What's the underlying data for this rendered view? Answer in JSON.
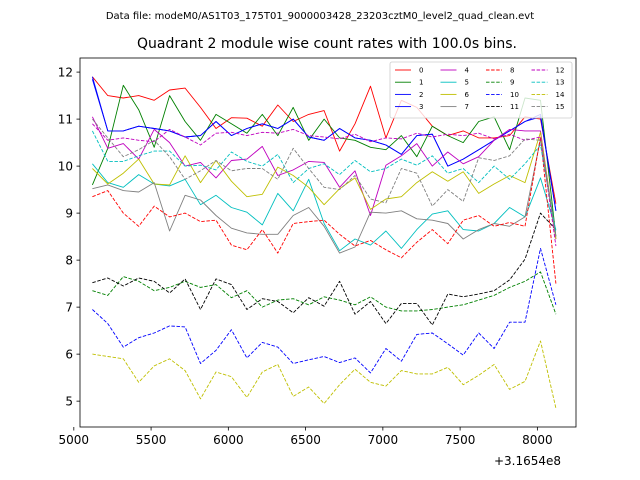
{
  "chart_data": {
    "type": "line",
    "suptitle": "Data file: modeM0/AS1T03_175T01_9000003428_23203cztM0_level2_quad_clean.evt",
    "title": "Quadrant 2 module wise count rates with 100.0s bins.",
    "xlabel": "",
    "ylabel": "",
    "x_offset_label": "+3.1654e8",
    "xlim": [
      5040,
      8250
    ],
    "ylim": [
      4.45,
      12.3
    ],
    "xticks": [
      5000,
      5500,
      6000,
      6500,
      7000,
      7500,
      8000
    ],
    "yticks": [
      5,
      6,
      7,
      8,
      9,
      10,
      11,
      12
    ],
    "legend_position": "top-right",
    "x": [
      5120,
      5220,
      5320,
      5420,
      5520,
      5620,
      5720,
      5820,
      5920,
      6020,
      6120,
      6220,
      6320,
      6420,
      6520,
      6620,
      6720,
      6820,
      6920,
      7020,
      7120,
      7220,
      7320,
      7420,
      7520,
      7620,
      7720,
      7820,
      7920,
      8020,
      8120
    ],
    "series": [
      {
        "name": "0",
        "color": "#ff0000",
        "dash": "solid",
        "values": [
          11.9,
          11.5,
          11.45,
          11.5,
          11.4,
          11.62,
          11.66,
          11.25,
          10.8,
          11.03,
          11.02,
          10.85,
          11.3,
          10.95,
          11.1,
          11.18,
          10.32,
          10.9,
          11.7,
          10.6,
          11.4,
          11.25,
          10.85,
          10.65,
          10.75,
          10.6,
          10.6,
          10.65,
          11.05,
          11.0,
          9.2
        ]
      },
      {
        "name": "1",
        "color": "#008000",
        "dash": "solid",
        "values": [
          9.6,
          10.38,
          11.72,
          11.2,
          10.4,
          11.5,
          10.95,
          10.55,
          11.1,
          10.9,
          10.7,
          11.1,
          10.65,
          11.25,
          10.55,
          11.0,
          10.6,
          10.55,
          10.4,
          10.35,
          10.65,
          10.2,
          10.85,
          10.65,
          10.5,
          10.95,
          11.05,
          10.35,
          11.45,
          11.4,
          8.5
        ]
      },
      {
        "name": "2",
        "color": "#0000ff",
        "dash": "solid",
        "values": [
          11.9,
          10.75,
          10.75,
          10.85,
          10.8,
          10.75,
          10.62,
          10.65,
          10.95,
          10.65,
          10.8,
          10.9,
          10.8,
          11.0,
          10.62,
          10.55,
          10.8,
          10.6,
          10.55,
          10.45,
          10.25,
          10.65,
          10.68,
          10.0,
          10.15,
          10.35,
          10.55,
          10.75,
          10.95,
          11.1,
          9.05
        ]
      },
      {
        "name": "3",
        "color": "#0000ff",
        "dash": "solid",
        "values": [
          11.85,
          10.75,
          10.75,
          10.85,
          10.8,
          10.75,
          10.62,
          10.65,
          10.95,
          10.65,
          10.8,
          10.9,
          10.8,
          11.0,
          10.62,
          10.55,
          10.8,
          10.6,
          10.55,
          10.45,
          10.25,
          10.65,
          10.68,
          10.0,
          10.15,
          10.35,
          10.55,
          10.75,
          10.95,
          11.05,
          9.05
        ]
      },
      {
        "name": "4",
        "color": "#bf00bf",
        "dash": "solid",
        "values": [
          11.05,
          10.38,
          10.48,
          10.15,
          10.78,
          10.5,
          10.0,
          10.08,
          9.75,
          10.12,
          10.15,
          10.42,
          9.8,
          9.92,
          10.1,
          10.08,
          9.55,
          9.9,
          8.95,
          10.02,
          10.22,
          10.48,
          10.0,
          10.3,
          10.05,
          10.2,
          10.55,
          10.78,
          10.75,
          10.75,
          8.45
        ]
      },
      {
        "name": "5",
        "color": "#00bfbf",
        "dash": "solid",
        "values": [
          10.05,
          9.65,
          9.55,
          9.82,
          9.62,
          9.58,
          9.72,
          9.18,
          9.38,
          9.12,
          9.02,
          8.75,
          9.42,
          9.05,
          9.72,
          8.78,
          8.2,
          8.45,
          8.32,
          8.62,
          8.25,
          8.65,
          8.98,
          9.05,
          8.65,
          8.62,
          8.78,
          9.12,
          8.92,
          9.75,
          8.65
        ]
      },
      {
        "name": "6",
        "color": "#bfbf00",
        "dash": "solid",
        "values": [
          9.95,
          9.62,
          9.85,
          10.15,
          9.62,
          9.6,
          10.22,
          9.65,
          10.12,
          9.68,
          9.35,
          9.4,
          9.98,
          9.8,
          9.55,
          9.18,
          9.52,
          9.75,
          9.08,
          9.3,
          9.35,
          9.65,
          9.88,
          9.68,
          9.88,
          9.42,
          9.62,
          9.8,
          9.65,
          10.72,
          8.45
        ]
      },
      {
        "name": "7",
        "color": "#808080",
        "dash": "solid",
        "values": [
          9.52,
          9.6,
          9.48,
          9.45,
          9.65,
          8.62,
          9.38,
          9.28,
          8.95,
          8.68,
          8.58,
          8.55,
          8.55,
          8.95,
          9.12,
          8.72,
          8.15,
          8.28,
          9.02,
          9.0,
          9.05,
          8.88,
          8.85,
          8.78,
          8.45,
          8.65,
          8.78,
          8.72,
          8.92,
          10.58,
          8.5
        ]
      },
      {
        "name": "8",
        "color": "#ff0000",
        "dash": "dashed",
        "values": [
          9.35,
          9.48,
          9.0,
          8.72,
          9.15,
          8.92,
          9.0,
          8.82,
          8.85,
          8.32,
          8.22,
          8.65,
          8.15,
          8.78,
          8.82,
          8.85,
          8.55,
          8.3,
          8.42,
          8.22,
          8.05,
          8.38,
          8.65,
          8.35,
          8.85,
          8.95,
          8.72,
          8.8,
          8.72,
          10.62,
          7.5
        ]
      },
      {
        "name": "9",
        "color": "#008000",
        "dash": "dashed",
        "values": [
          7.35,
          7.25,
          7.65,
          7.55,
          7.35,
          7.42,
          7.55,
          7.42,
          7.48,
          7.2,
          7.35,
          7.0,
          7.15,
          7.18,
          7.05,
          7.22,
          7.15,
          7.05,
          7.22,
          7.0,
          6.92,
          6.92,
          6.95,
          7.0,
          7.05,
          7.15,
          7.25,
          7.42,
          7.55,
          7.75,
          6.85
        ]
      },
      {
        "name": "10",
        "color": "#0000ff",
        "dash": "dashed",
        "values": [
          6.95,
          6.65,
          6.15,
          6.35,
          6.45,
          6.6,
          6.58,
          5.8,
          6.08,
          6.52,
          5.92,
          6.25,
          6.15,
          5.8,
          5.88,
          5.95,
          5.82,
          5.92,
          5.6,
          6.12,
          5.85,
          6.42,
          6.45,
          6.22,
          5.98,
          6.45,
          6.12,
          6.68,
          6.68,
          8.25,
          7.05
        ]
      },
      {
        "name": "11",
        "color": "#000000",
        "dash": "dashed",
        "values": [
          7.52,
          7.62,
          7.45,
          7.62,
          7.55,
          7.3,
          7.6,
          6.95,
          7.6,
          7.48,
          6.95,
          7.18,
          7.12,
          6.88,
          7.2,
          7.02,
          7.55,
          6.85,
          7.12,
          6.65,
          7.08,
          7.08,
          6.62,
          7.28,
          7.22,
          7.28,
          7.35,
          7.58,
          8.02,
          9.0,
          8.65
        ]
      },
      {
        "name": "12",
        "color": "#bf00bf",
        "dash": "dashed",
        "values": [
          10.9,
          10.55,
          10.6,
          10.55,
          10.52,
          10.78,
          10.62,
          10.45,
          10.7,
          10.72,
          10.65,
          10.72,
          10.7,
          10.78,
          10.65,
          10.62,
          10.58,
          10.68,
          10.52,
          10.6,
          10.58,
          10.7,
          10.62,
          10.68,
          10.65,
          10.7,
          10.58,
          10.68,
          10.55,
          10.62,
          8.3
        ]
      },
      {
        "name": "13",
        "color": "#00bfbf",
        "dash": "dashed",
        "values": [
          10.75,
          10.1,
          10.1,
          10.22,
          10.32,
          10.32,
          10.0,
          10.02,
          9.92,
          10.3,
          10.1,
          10.0,
          10.25,
          9.65,
          9.95,
          10.05,
          9.82,
          10.12,
          9.88,
          9.95,
          10.15,
          10.02,
          10.22,
          9.85,
          9.95,
          9.65,
          10.0,
          9.72,
          10.05,
          10.45,
          8.6
        ]
      },
      {
        "name": "14",
        "color": "#bfbf00",
        "dash": "dashed",
        "values": [
          6.0,
          5.95,
          5.9,
          5.4,
          5.75,
          5.9,
          5.65,
          5.05,
          5.62,
          5.52,
          5.08,
          5.62,
          5.78,
          5.1,
          5.3,
          4.95,
          5.35,
          5.68,
          5.4,
          5.32,
          5.65,
          5.58,
          5.58,
          5.72,
          5.35,
          5.55,
          5.78,
          5.25,
          5.42,
          6.28,
          4.85
        ]
      },
      {
        "name": "15",
        "color": "#808080",
        "dash": "dashed",
        "values": [
          11.0,
          10.6,
          10.2,
          10.35,
          10.55,
          10.2,
          9.72,
          9.9,
          10.12,
          9.9,
          9.95,
          9.95,
          9.72,
          10.38,
          9.95,
          9.55,
          9.5,
          9.8,
          9.3,
          9.22,
          9.95,
          9.85,
          9.15,
          9.5,
          9.25,
          10.18,
          10.12,
          10.22,
          10.58,
          10.55,
          8.5
        ]
      }
    ]
  }
}
